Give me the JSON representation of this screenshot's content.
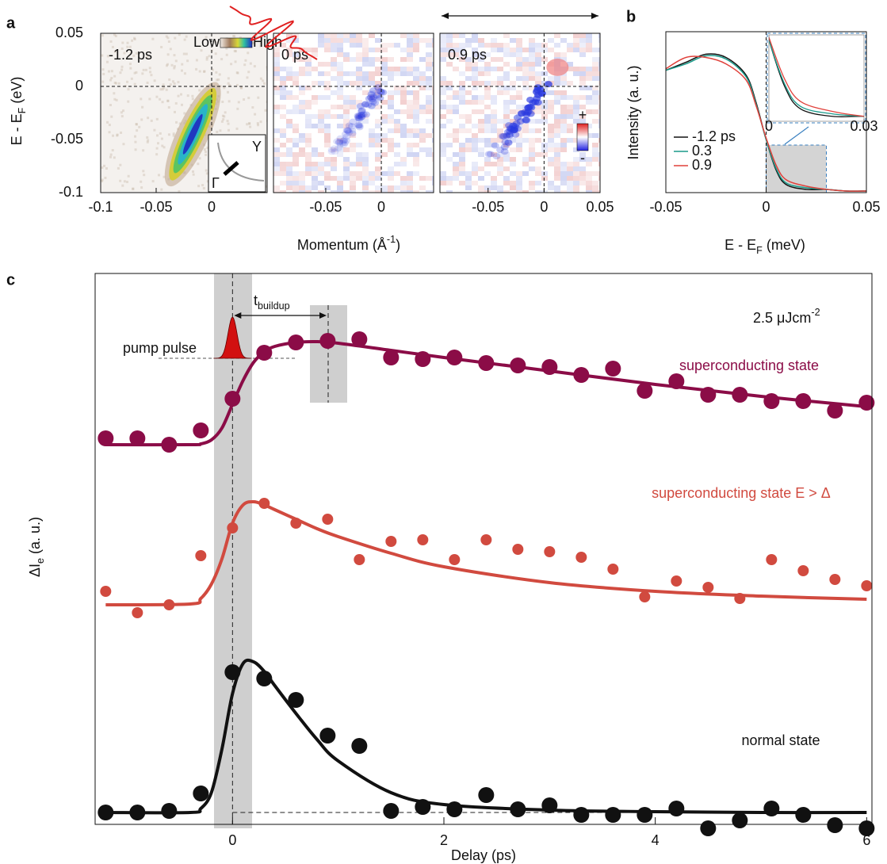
{
  "chart_data": [
    {
      "type": "heatmap",
      "panel": "a",
      "ylabel": [
        "E - E",
        "F",
        " (eV)"
      ],
      "xlabel": [
        "Momentum (Å",
        "-1",
        ")"
      ],
      "ylim": [
        -0.1,
        0.05
      ],
      "yticks": [
        -0.1,
        -0.05,
        0,
        0.05
      ],
      "colorbar_labels": [
        "Low",
        "High"
      ],
      "difference_labels": [
        "+",
        "-"
      ],
      "inset_labels": [
        "Y",
        "Γ"
      ],
      "subplots": [
        {
          "label": "-1.2 ps",
          "xlim": [
            -0.1,
            0.05
          ],
          "xticks": [
            -0.1,
            -0.05,
            0
          ]
        },
        {
          "label": "0 ps",
          "xlim": [
            -0.097,
            0.047
          ],
          "xticks": [
            -0.05,
            0
          ]
        },
        {
          "label": "0.9 ps",
          "xlim": [
            -0.093,
            0.05
          ],
          "xticks": [
            -0.05,
            0,
            0.05
          ]
        }
      ]
    },
    {
      "type": "line",
      "panel": "b",
      "xlabel": [
        "E - E",
        "F",
        " (meV)"
      ],
      "ylabel": "Intensity (a. u.)",
      "x": [
        -0.05,
        -0.04,
        -0.03,
        -0.02,
        -0.01,
        -0.005,
        0,
        0.005,
        0.01,
        0.02,
        0.03,
        0.04,
        0.05
      ],
      "xlim": [
        -0.05,
        0.05
      ],
      "xticks": [
        -0.05,
        0,
        0.05
      ],
      "ylim": [
        0,
        1
      ],
      "series": [
        {
          "name": "-1.2 ps",
          "color": "#111111",
          "values": [
            0.76,
            0.81,
            0.86,
            0.84,
            0.73,
            0.56,
            0.33,
            0.14,
            0.05,
            0.02,
            0.02,
            0.01,
            0.01
          ]
        },
        {
          "name": "0.3",
          "color": "#1a9a8a",
          "values": [
            0.76,
            0.8,
            0.85,
            0.83,
            0.72,
            0.55,
            0.33,
            0.15,
            0.06,
            0.03,
            0.02,
            0.01,
            0.01
          ]
        },
        {
          "name": "0.9",
          "color": "#e0403a",
          "values": [
            0.77,
            0.84,
            0.84,
            0.8,
            0.7,
            0.54,
            0.34,
            0.17,
            0.08,
            0.04,
            0.02,
            0.01,
            0.01
          ]
        }
      ],
      "inset": {
        "xlim": [
          0,
          0.03
        ],
        "ylim": [
          0,
          0.35
        ],
        "xticks": [
          0,
          0.03
        ]
      }
    },
    {
      "type": "scatter",
      "panel": "c",
      "xlabel": "Delay (ps)",
      "ylabel": [
        "ΔI",
        "e",
        " (a. u.)"
      ],
      "xlim": [
        -1.3,
        6.05
      ],
      "xticks": [
        0,
        2,
        4,
        6
      ],
      "ylim": [
        -0.15,
        6.8
      ],
      "fluence": [
        "2.5 μJcm",
        "-2"
      ],
      "pump_label": "pump pulse",
      "buildup_label": [
        "t",
        "buildup"
      ],
      "x": [
        -1.2,
        -0.9,
        -0.6,
        -0.3,
        0,
        0.3,
        0.6,
        0.9,
        1.2,
        1.5,
        1.8,
        2.1,
        2.4,
        2.7,
        3.0,
        3.3,
        3.6,
        3.9,
        4.2,
        4.5,
        4.8,
        5.1,
        5.4,
        5.7,
        6.0
      ],
      "series": [
        {
          "name": "superconducting state",
          "color": "#8b0c47",
          "values": [
            4.72,
            4.72,
            4.64,
            4.82,
            5.22,
            5.8,
            5.93,
            5.95,
            5.97,
            5.74,
            5.72,
            5.74,
            5.67,
            5.64,
            5.62,
            5.52,
            5.6,
            5.32,
            5.44,
            5.27,
            5.27,
            5.19,
            5.19,
            5.07,
            5.17
          ],
          "fit": {
            "x": [
              -1.2,
              -0.4,
              -0.3,
              -0.2,
              -0.1,
              0,
              0.1,
              0.2,
              0.3,
              0.4,
              0.6,
              0.8,
              1.0,
              1.5,
              2,
              3,
              4,
              5,
              6
            ],
            "values": [
              4.64,
              4.64,
              4.65,
              4.7,
              4.85,
              5.15,
              5.45,
              5.68,
              5.81,
              5.88,
              5.93,
              5.94,
              5.92,
              5.83,
              5.74,
              5.57,
              5.4,
              5.25,
              5.12
            ]
          }
        },
        {
          "name": "superconducting state E > Δ",
          "color": "#d14a3f",
          "values": [
            2.79,
            2.52,
            2.62,
            3.24,
            3.59,
            3.9,
            3.65,
            3.7,
            3.19,
            3.42,
            3.44,
            3.19,
            3.44,
            3.32,
            3.29,
            3.22,
            3.07,
            2.72,
            2.92,
            2.84,
            2.7,
            3.19,
            3.05,
            2.94,
            2.86
          ],
          "fit": {
            "x": [
              -1.2,
              -0.4,
              -0.3,
              -0.2,
              -0.1,
              0,
              0.1,
              0.2,
              0.3,
              0.4,
              0.6,
              0.8,
              1.0,
              1.5,
              2,
              3,
              4,
              5,
              6
            ],
            "values": [
              2.62,
              2.63,
              2.7,
              2.88,
              3.2,
              3.65,
              3.88,
              3.92,
              3.88,
              3.82,
              3.7,
              3.58,
              3.48,
              3.27,
              3.1,
              2.9,
              2.79,
              2.73,
              2.69
            ]
          }
        },
        {
          "name": "normal state",
          "color": "#111111",
          "values": [
            0,
            0,
            0.02,
            0.24,
            1.77,
            1.69,
            1.42,
            0.97,
            0.84,
            0.02,
            0.07,
            0.04,
            0.22,
            0.04,
            0.09,
            -0.03,
            -0.03,
            -0.03,
            0.05,
            -0.2,
            -0.1,
            0.05,
            -0.03,
            -0.16,
            -0.2
          ],
          "fit": {
            "x": [
              -1.2,
              -0.4,
              -0.3,
              -0.2,
              -0.1,
              0,
              0.1,
              0.2,
              0.3,
              0.4,
              0.6,
              0.8,
              1.0,
              1.5,
              2,
              3,
              4,
              5,
              6
            ],
            "values": [
              0,
              0,
              0.05,
              0.25,
              0.8,
              1.5,
              1.88,
              1.9,
              1.78,
              1.6,
              1.25,
              0.92,
              0.65,
              0.25,
              0.1,
              0.03,
              0.01,
              0,
              0
            ]
          }
        }
      ]
    }
  ]
}
